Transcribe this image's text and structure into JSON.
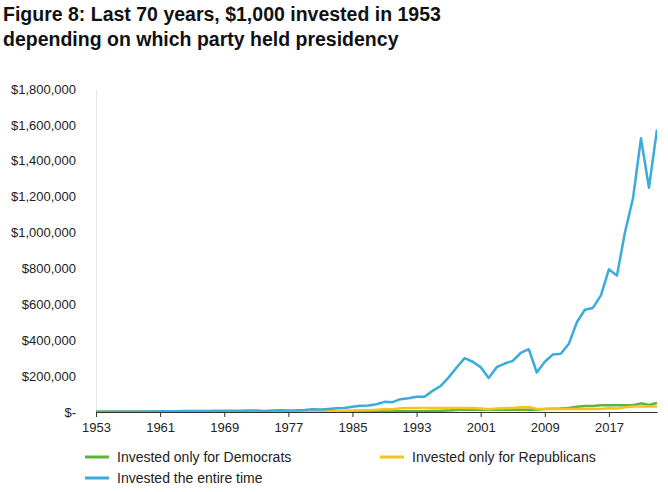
{
  "chart_data": {
    "type": "line",
    "title": [
      "Figure 8: Last 70 years, $1,000 invested in 1953",
      "depending on which party held presidency"
    ],
    "x": [
      1953,
      1954,
      1955,
      1956,
      1957,
      1958,
      1959,
      1960,
      1961,
      1962,
      1963,
      1964,
      1965,
      1966,
      1967,
      1968,
      1969,
      1970,
      1971,
      1972,
      1973,
      1974,
      1975,
      1976,
      1977,
      1978,
      1979,
      1980,
      1981,
      1982,
      1983,
      1984,
      1985,
      1986,
      1987,
      1988,
      1989,
      1990,
      1991,
      1992,
      1993,
      1994,
      1995,
      1996,
      1997,
      1998,
      1999,
      2000,
      2001,
      2002,
      2003,
      2004,
      2005,
      2006,
      2007,
      2008,
      2009,
      2010,
      2011,
      2012,
      2013,
      2014,
      2015,
      2016,
      2017,
      2018,
      2019,
      2020,
      2021,
      2022,
      2023
    ],
    "series": [
      {
        "name": "Invested only for Democrats",
        "color": "#5cb43c",
        "values": [
          1000,
          1000,
          1000,
          1000,
          1000,
          1000,
          1000,
          1000,
          1270,
          1160,
          1420,
          1650,
          1860,
          1670,
          2070,
          2300,
          2300,
          2300,
          2300,
          2300,
          2300,
          2300,
          2300,
          2300,
          2140,
          2280,
          2700,
          3580,
          3580,
          3580,
          3580,
          3580,
          3580,
          3580,
          3580,
          3580,
          3580,
          3580,
          3580,
          3580,
          3940,
          3990,
          5490,
          6750,
          9000,
          11580,
          14020,
          12740,
          12740,
          12740,
          12740,
          12740,
          12740,
          12740,
          12740,
          12740,
          16100,
          18530,
          18900,
          21930,
          29030,
          33000,
          33460,
          37470,
          37470,
          37470,
          37470,
          37470,
          48220,
          39500,
          49870
        ]
      },
      {
        "name": "Invested only for Republicans",
        "color": "#f3c51a",
        "values": [
          990,
          1520,
          2000,
          2130,
          1900,
          2720,
          3050,
          3060,
          3060,
          3060,
          3060,
          3060,
          3060,
          3060,
          3060,
          3060,
          2800,
          2910,
          3330,
          3960,
          3380,
          2480,
          3410,
          4230,
          4230,
          4230,
          4230,
          4230,
          4020,
          4880,
          5980,
          6360,
          8370,
          9930,
          10450,
          12180,
          16040,
          15540,
          20270,
          21810,
          21810,
          21810,
          21810,
          21810,
          21810,
          21810,
          21810,
          21810,
          19210,
          14970,
          19260,
          21350,
          22400,
          25940,
          27360,
          17240,
          17240,
          17240,
          17240,
          17240,
          17240,
          17240,
          17240,
          17240,
          21000,
          20080,
          26400,
          31260,
          31260,
          31260,
          31260
        ]
      },
      {
        "name": "Invested the entire time",
        "color": "#3aabda",
        "values": [
          1000,
          1500,
          2000,
          2100,
          1900,
          2700,
          3000,
          3000,
          3800,
          3500,
          4300,
          5000,
          5600,
          5000,
          6200,
          6900,
          6300,
          6600,
          7500,
          9000,
          7700,
          5600,
          7700,
          9600,
          8900,
          9500,
          11200,
          14900,
          14200,
          17200,
          21000,
          22400,
          29500,
          35000,
          36800,
          43000,
          56500,
          54700,
          71400,
          76800,
          84500,
          85600,
          117700,
          144700,
          193000,
          248000,
          300000,
          280000,
          250000,
          190000,
          250000,
          270000,
          285000,
          330000,
          350000,
          220000,
          280000,
          320000,
          325000,
          380000,
          500000,
          570000,
          580000,
          650000,
          795000,
          760000,
          1000000,
          1190000,
          1525000,
          1250000,
          1575000
        ]
      }
    ],
    "xlim": [
      1953,
      2023
    ],
    "xticks": [
      1953,
      1961,
      1969,
      1977,
      1985,
      1993,
      2001,
      2009,
      2017
    ],
    "ylim": [
      0,
      1800000
    ],
    "yticks": [
      {
        "value": 0,
        "label": "$-"
      },
      {
        "value": 200000,
        "label": "$200,000"
      },
      {
        "value": 400000,
        "label": "$400,000"
      },
      {
        "value": 600000,
        "label": "$600,000"
      },
      {
        "value": 800000,
        "label": "$800,000"
      },
      {
        "value": 1000000,
        "label": "$1,000,000"
      },
      {
        "value": 1200000,
        "label": "$1,200,000"
      },
      {
        "value": 1400000,
        "label": "$1,400,000"
      },
      {
        "value": 1600000,
        "label": "$1,600,000"
      },
      {
        "value": 1800000,
        "label": "$1,800,000"
      }
    ],
    "grid": false,
    "legend": "bottom"
  }
}
